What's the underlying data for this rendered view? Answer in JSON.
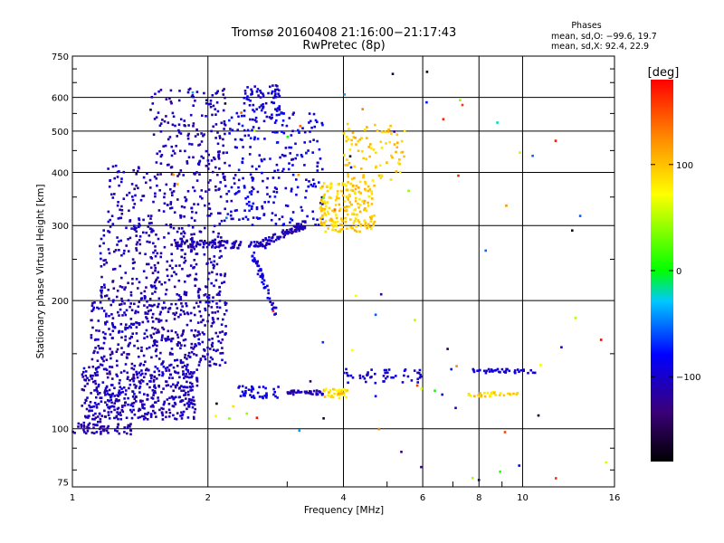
{
  "chart_data": {
    "type": "scatter",
    "title": "Tromsø 20160408 21:16:00−21:17:43",
    "subtitle": "RwPretec (8p)",
    "xlabel": "Frequency [MHz]",
    "ylabel": "Stationary phase Virtual Height [km]",
    "x_scale": "log",
    "y_scale": "log",
    "xlim": [
      1,
      16
    ],
    "ylim": [
      73,
      750
    ],
    "x_ticks": [
      1,
      2,
      4,
      6,
      8,
      10,
      16
    ],
    "x_tick_labels": [
      "1",
      "2",
      "4",
      "6",
      "8",
      "10",
      "16"
    ],
    "y_ticks": [
      75,
      100,
      200,
      300,
      400,
      500,
      600,
      750
    ],
    "y_tick_labels": [
      "75",
      "100",
      "200",
      "300",
      "400",
      "500",
      "600",
      "750"
    ],
    "grid": true,
    "stats": {
      "heading": "Phases",
      "line_o": "mean, sd,O: −99.6, 19.7",
      "line_x": "mean, sd,X:  92.4, 22.9"
    },
    "colorbar": {
      "label": "[deg]",
      "range": [
        -180,
        180
      ],
      "ticks": [
        -100,
        0,
        100
      ],
      "tick_labels": [
        "−100",
        "0",
        "100"
      ]
    },
    "clusters": [
      {
        "f": [
          1.0,
          1.35
        ],
        "h": [
          97,
          104
        ],
        "phase": [
          -125,
          -95
        ],
        "n": 60
      },
      {
        "f": [
          1.05,
          1.9
        ],
        "h": [
          105,
          140
        ],
        "phase": [
          -125,
          -90
        ],
        "n": 450
      },
      {
        "f": [
          1.1,
          2.2
        ],
        "h": [
          140,
          200
        ],
        "phase": [
          -125,
          -90
        ],
        "n": 400
      },
      {
        "f": [
          1.15,
          2.2
        ],
        "h": [
          200,
          300
        ],
        "phase": [
          -125,
          -90
        ],
        "n": 300
      },
      {
        "f": [
          1.2,
          2.2
        ],
        "h": [
          300,
          420
        ],
        "phase": [
          -125,
          -90
        ],
        "n": 180
      },
      {
        "f": [
          1.5,
          2.2
        ],
        "h": [
          420,
          630
        ],
        "phase": [
          -125,
          -95
        ],
        "n": 140
      },
      {
        "f": [
          2.4,
          2.9
        ],
        "h": [
          560,
          640
        ],
        "phase": [
          -115,
          -80
        ],
        "n": 60
      },
      {
        "f": [
          2.2,
          3.6
        ],
        "h": [
          300,
          560
        ],
        "phase": [
          -110,
          -70
        ],
        "n": 260
      },
      {
        "f": [
          3.0,
          3.6
        ],
        "h": [
          120,
          123
        ],
        "phase": [
          -120,
          -100
        ],
        "n": 40
      },
      {
        "f": [
          2.3,
          2.9
        ],
        "h": [
          118,
          126
        ],
        "phase": [
          -100,
          -80
        ],
        "n": 40
      },
      {
        "f": [
          3.55,
          4.7
        ],
        "h": [
          290,
          380
        ],
        "phase": [
          80,
          110
        ],
        "n": 200
      },
      {
        "f": [
          4.0,
          5.5
        ],
        "h": [
          380,
          520
        ],
        "phase": [
          80,
          110
        ],
        "n": 80
      },
      {
        "f": [
          3.6,
          4.1
        ],
        "h": [
          118,
          124
        ],
        "phase": [
          70,
          110
        ],
        "n": 40
      },
      {
        "f": [
          4.0,
          6.0
        ],
        "h": [
          128,
          138
        ],
        "phase": [
          -110,
          -85
        ],
        "n": 50
      },
      {
        "f": [
          7.7,
          10.8
        ],
        "h": [
          135,
          138
        ],
        "phase": [
          -110,
          -85
        ],
        "n": 40
      },
      {
        "f": [
          7.5,
          10.0
        ],
        "h": [
          119,
          122
        ],
        "phase": [
          75,
          110
        ],
        "n": 30
      },
      {
        "f": [
          1.4,
          15.5
        ],
        "h": [
          75,
          700
        ],
        "phase": [
          -180,
          180
        ],
        "n": 80
      }
    ],
    "curves": [
      {
        "f": [
          1.7,
          2.6,
          3.3
        ],
        "h": [
          272,
          270,
          302
        ],
        "phase": [
          -120,
          -95
        ],
        "n": 180
      },
      {
        "f": [
          2.5,
          2.85
        ],
        "h": [
          258,
          185
        ],
        "phase": [
          -110,
          -75
        ],
        "n": 50
      }
    ]
  }
}
